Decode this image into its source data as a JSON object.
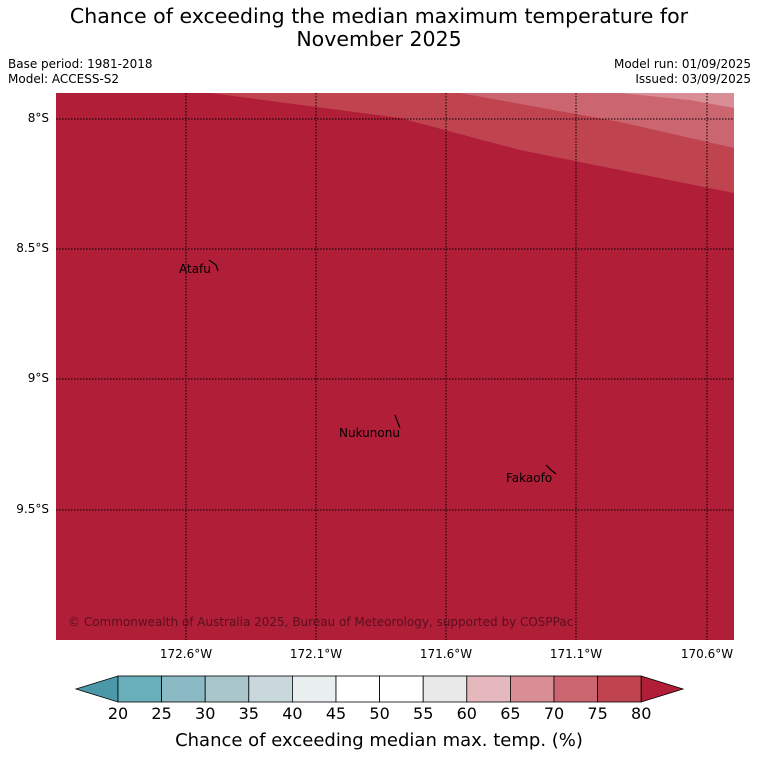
{
  "title": {
    "line1": "Chance of exceeding the median maximum temperature for",
    "line2": "November 2025"
  },
  "meta": {
    "base_period": "Base period: 1981-2018",
    "model": "Model: ACCESS-S2",
    "model_run": "Model run: 01/09/2025",
    "issued": "Issued: 03/09/2025"
  },
  "map": {
    "background_color": "#b01e38",
    "latitude_labels": [
      "8°S",
      "8.5°S",
      "9°S",
      "9.5°S"
    ],
    "longitude_labels": [
      "172.6°W",
      "172.1°W",
      "171.6°W",
      "171.1°W",
      "170.6°W"
    ],
    "islands": [
      {
        "name": "Atafu",
        "label": "Atafu"
      },
      {
        "name": "Nukunonu",
        "label": "Nukunonu"
      },
      {
        "name": "Fakaofo",
        "label": "Fakaofo"
      }
    ],
    "copyright": "© Commonwealth of Australia 2025, Bureau of Meteorology, supported by COSPPac"
  },
  "colorbar": {
    "ticks": [
      "20",
      "25",
      "30",
      "35",
      "40",
      "45",
      "50",
      "55",
      "60",
      "65",
      "70",
      "75",
      "80"
    ],
    "colors": [
      "#4a98a8",
      "#69aebb",
      "#8bb9c4",
      "#a9c6cb",
      "#c8d8dc",
      "#e9eeef",
      "#ffffff",
      "#ffffff",
      "#e9e9e9",
      "#e4b8bd",
      "#d98e95",
      "#cb6670",
      "#c0444f",
      "#b01e38"
    ],
    "label": "Chance of exceeding median max. temp. (%)"
  }
}
